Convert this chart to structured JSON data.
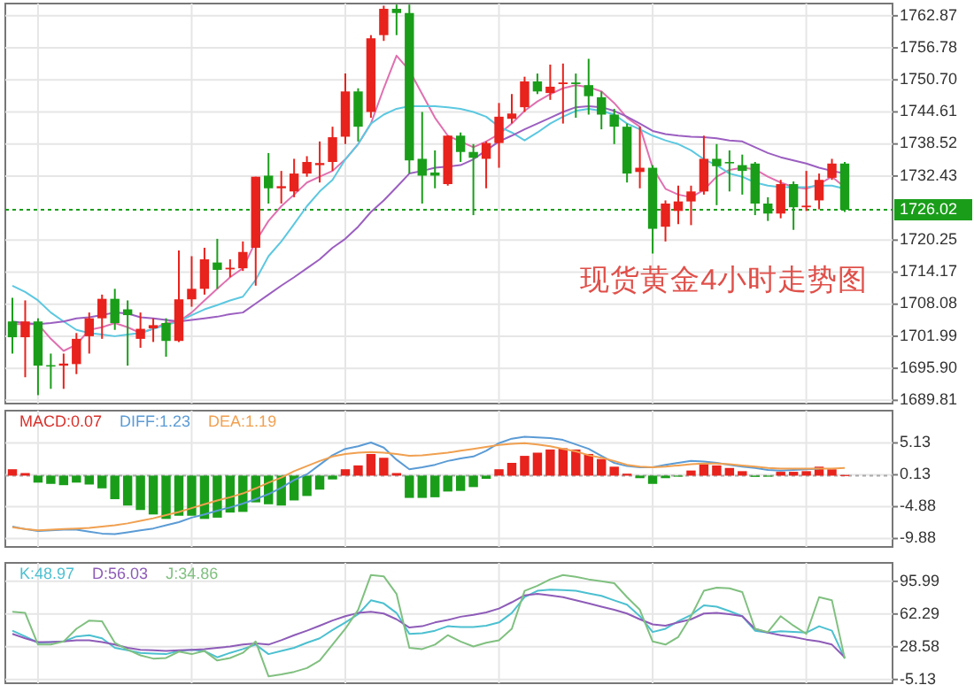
{
  "chart_data": [
    {
      "type": "candlestick",
      "title": "现货黄金4小时走势图",
      "categories": [
        null,
        null,
        null,
        null,
        null,
        null,
        null,
        null,
        null,
        null,
        null,
        null,
        null,
        null,
        null,
        null,
        null,
        null,
        null,
        null,
        null,
        null,
        null,
        null,
        null,
        null,
        null,
        null,
        null,
        null,
        null,
        null,
        null,
        null,
        null,
        null,
        null,
        null,
        null,
        null,
        null,
        null,
        null,
        null,
        null,
        null,
        null,
        null,
        null,
        null,
        null,
        null,
        null,
        null,
        null,
        null,
        null,
        null,
        null,
        null,
        null,
        null,
        null,
        null,
        null,
        null
      ],
      "ohlc": [
        [
          1704.8,
          1709.3,
          1698.7,
          1701.8
        ],
        [
          1701.8,
          1708.8,
          1694.2,
          1704.8
        ],
        [
          1704.8,
          1705.4,
          1690.8,
          1696.4
        ],
        [
          1696.5,
          1698.7,
          1692.0,
          1696.3
        ],
        [
          1696.4,
          1698.7,
          1692.0,
          1696.8
        ],
        [
          1696.7,
          1702.6,
          1694.8,
          1701.5
        ],
        [
          1702.0,
          1706.5,
          1698.7,
          1705.4
        ],
        [
          1705.4,
          1709.9,
          1701.5,
          1709.1
        ],
        [
          1709.1,
          1711.0,
          1703.2,
          1704.5
        ],
        [
          1707.1,
          1708.8,
          1696.4,
          1706.0
        ],
        [
          1701.5,
          1706.5,
          1699.8,
          1703.4
        ],
        [
          1703.5,
          1705.4,
          1700.9,
          1704.1
        ],
        [
          1704.5,
          1705.4,
          1698.1,
          1701.1
        ],
        [
          1701.1,
          1718.3,
          1700.9,
          1709.0
        ],
        [
          1709.0,
          1717.2,
          1707.6,
          1711.0
        ],
        [
          1711.0,
          1718.8,
          1709.9,
          1716.6
        ],
        [
          1716.0,
          1720.5,
          1711.0,
          1714.6
        ],
        [
          1714.7,
          1716.6,
          1713.2,
          1715.0
        ],
        [
          1714.9,
          1720.0,
          1714.4,
          1718.0
        ],
        [
          1718.8,
          1732.3,
          1711.6,
          1732.3
        ],
        [
          1732.5,
          1736.8,
          1727.2,
          1730.1
        ],
        [
          1730.1,
          1733.4,
          1727.2,
          1730.5
        ],
        [
          1729.5,
          1735.7,
          1728.4,
          1732.9
        ],
        [
          1732.9,
          1736.2,
          1732.3,
          1735.1
        ],
        [
          1734.5,
          1739.0,
          1731.2,
          1734.9
        ],
        [
          1735.1,
          1741.8,
          1733.4,
          1739.8
        ],
        [
          1739.9,
          1751.9,
          1738.5,
          1748.5
        ],
        [
          1748.5,
          1749.1,
          1739.0,
          1741.8
        ],
        [
          1744.6,
          1759.2,
          1743.5,
          1758.6
        ],
        [
          1759.2,
          1764.8,
          1758.1,
          1764.2
        ],
        [
          1764.2,
          1765.0,
          1759.2,
          1763.4
        ],
        [
          1763.4,
          1765.0,
          1732.9,
          1735.4
        ],
        [
          1735.7,
          1744.6,
          1727.2,
          1732.5
        ],
        [
          1733.1,
          1737.3,
          1730.1,
          1732.5
        ],
        [
          1730.9,
          1740.1,
          1730.6,
          1740.1
        ],
        [
          1740.1,
          1740.7,
          1735.1,
          1737.0
        ],
        [
          1737.0,
          1738.5,
          1725.0,
          1735.9
        ],
        [
          1735.7,
          1739.0,
          1730.1,
          1738.7
        ],
        [
          1738.7,
          1746.3,
          1734.0,
          1743.7
        ],
        [
          1743.3,
          1748.0,
          1742.4,
          1744.3
        ],
        [
          1745.5,
          1751.3,
          1744.6,
          1750.4
        ],
        [
          1750.4,
          1751.9,
          1748.0,
          1748.5
        ],
        [
          1748.2,
          1753.6,
          1746.9,
          1749.4
        ],
        [
          1749.9,
          1753.8,
          1742.4,
          1750.2
        ],
        [
          1750.2,
          1751.9,
          1743.5,
          1749.9
        ],
        [
          1749.7,
          1754.7,
          1744.1,
          1747.6
        ],
        [
          1747.4,
          1748.5,
          1741.3,
          1744.1
        ],
        [
          1744.1,
          1745.2,
          1738.5,
          1741.8
        ],
        [
          1741.8,
          1742.4,
          1731.2,
          1732.9
        ],
        [
          1733.2,
          1741.8,
          1730.1,
          1734.0
        ],
        [
          1734.0,
          1734.5,
          1717.7,
          1722.4
        ],
        [
          1722.8,
          1727.8,
          1720.0,
          1727.2
        ],
        [
          1725.8,
          1730.6,
          1723.3,
          1727.6
        ],
        [
          1727.6,
          1730.6,
          1723.1,
          1729.5
        ],
        [
          1729.5,
          1740.1,
          1728.9,
          1735.7
        ],
        [
          1735.7,
          1738.5,
          1726.9,
          1734.3
        ],
        [
          1735.1,
          1737.3,
          1729.5,
          1734.9
        ],
        [
          1734.5,
          1736.5,
          1728.9,
          1733.4
        ],
        [
          1734.8,
          1735.1,
          1725.0,
          1727.2
        ],
        [
          1727.2,
          1728.4,
          1723.9,
          1725.3
        ],
        [
          1725.3,
          1731.7,
          1724.4,
          1730.9
        ],
        [
          1730.9,
          1731.4,
          1722.2,
          1726.5
        ],
        [
          1726.5,
          1733.4,
          1725.8,
          1726.8
        ],
        [
          1727.8,
          1732.9,
          1726.1,
          1731.7
        ],
        [
          1732.1,
          1735.7,
          1731.7,
          1734.8
        ],
        [
          1734.8,
          1735.1,
          1725.6,
          1726.0
        ]
      ],
      "colors": [
        "#1a9e1a",
        "#e8221c",
        "#1a9e1a",
        "#1a9e1a",
        "#e8221c",
        "#e8221c",
        "#e8221c",
        "#e8221c",
        "#1a9e1a",
        "#1a9e1a",
        "#e8221c",
        "#e8221c",
        "#1a9e1a",
        "#e8221c",
        "#e8221c",
        "#e8221c",
        "#1a9e1a",
        "#e8221c",
        "#e8221c",
        "#e8221c",
        "#1a9e1a",
        "#e8221c",
        "#e8221c",
        "#e8221c",
        "#e8221c",
        "#e8221c",
        "#e8221c",
        "#1a9e1a",
        "#e8221c",
        "#e8221c",
        "#1a9e1a",
        "#1a9e1a",
        "#1a9e1a",
        "#1a9e1a",
        "#e8221c",
        "#1a9e1a",
        "#1a9e1a",
        "#e8221c",
        "#e8221c",
        "#e8221c",
        "#e8221c",
        "#1a9e1a",
        "#e8221c",
        "#e8221c",
        "#1a9e1a",
        "#1a9e1a",
        "#1a9e1a",
        "#1a9e1a",
        "#1a9e1a",
        "#e8221c",
        "#1a9e1a",
        "#e8221c",
        "#e8221c",
        "#e8221c",
        "#e8221c",
        "#1a9e1a",
        "#1a9e1a",
        "#1a9e1a",
        "#1a9e1a",
        "#1a9e1a",
        "#e8221c",
        "#1a9e1a",
        "#e8221c",
        "#e8221c",
        "#e8221c",
        "#1a9e1a"
      ],
      "series": [
        {
          "type": "line",
          "color": "#e070b0",
          "values": [
            1704.3,
            1704.3,
            1704.3,
            1701.5,
            1699.2,
            1700.4,
            1703.2,
            1703.7,
            1704.5,
            1703.7,
            1702.6,
            1703.4,
            1704.5,
            1704.8,
            1706.5,
            1708.8,
            1711.0,
            1713.2,
            1714.9,
            1720.0,
            1723.9,
            1726.7,
            1728.9,
            1731.2,
            1732.3,
            1733.4,
            1735.6,
            1738.5,
            1742.4,
            1749.1,
            1755.3,
            1752.5,
            1748.0,
            1743.5,
            1740.1,
            1739.0,
            1737.9,
            1739.0,
            1740.4,
            1742.4,
            1744.8,
            1746.6,
            1748.0,
            1749.1,
            1749.7,
            1749.3,
            1748.5,
            1746.3,
            1743.5,
            1741.8,
            1734.0,
            1730.0,
            1728.9,
            1728.4,
            1729.8,
            1732.3,
            1733.6,
            1734.0,
            1733.7,
            1732.3,
            1731.2,
            1730.3,
            1730.0,
            1730.9,
            1732.3,
            1730.3
          ]
        },
        {
          "type": "line",
          "color": "#5cc8e0",
          "values": [
            1711.6,
            1710.4,
            1708.8,
            1706.5,
            1704.8,
            1703.2,
            1702.6,
            1702.3,
            1702.0,
            1702.3,
            1702.6,
            1703.4,
            1704.1,
            1704.8,
            1706.0,
            1707.1,
            1707.9,
            1708.8,
            1709.5,
            1712.7,
            1717.2,
            1720.0,
            1723.3,
            1726.7,
            1729.5,
            1731.7,
            1735.6,
            1738.5,
            1742.4,
            1744.1,
            1745.2,
            1745.7,
            1745.7,
            1745.7,
            1745.5,
            1745.2,
            1744.6,
            1743.7,
            1741.8,
            1740.7,
            1739.2,
            1740.7,
            1742.4,
            1743.7,
            1744.8,
            1745.2,
            1744.8,
            1744.1,
            1742.4,
            1741.3,
            1740.1,
            1739.2,
            1738.5,
            1737.3,
            1735.6,
            1734.5,
            1732.9,
            1732.3,
            1731.2,
            1730.6,
            1730.3,
            1730.3,
            1730.3,
            1730.6,
            1730.6,
            1730.0
          ]
        },
        {
          "type": "line",
          "color": "#9b5fc0",
          "values": [
            1704.8,
            1704.5,
            1704.3,
            1704.5,
            1704.8,
            1705.4,
            1705.6,
            1706.0,
            1706.5,
            1706.3,
            1705.6,
            1705.4,
            1705.1,
            1704.8,
            1705.1,
            1705.4,
            1705.7,
            1706.2,
            1706.5,
            1708.2,
            1709.9,
            1711.6,
            1713.2,
            1714.9,
            1716.6,
            1718.8,
            1720.5,
            1722.8,
            1725.6,
            1727.8,
            1730.3,
            1732.9,
            1733.4,
            1734.0,
            1734.2,
            1734.5,
            1735.6,
            1737.3,
            1739.0,
            1740.1,
            1741.3,
            1742.4,
            1743.5,
            1744.6,
            1745.5,
            1745.7,
            1745.5,
            1744.8,
            1743.7,
            1742.4,
            1741.0,
            1740.4,
            1740.1,
            1739.9,
            1739.8,
            1739.6,
            1739.2,
            1739.0,
            1737.9,
            1736.8,
            1736.0,
            1735.4,
            1734.8,
            1734.0,
            1733.4,
            1732.9
          ]
        }
      ],
      "ylim": [
        1689.2,
        1765.2
      ],
      "yticks": [
        1762.87,
        1756.78,
        {
          "value": 1750.7,
          "label": "1750.70"
        },
        1744.61,
        1738.52,
        1732.43,
        1720.25,
        1714.17,
        1708.08,
        1701.99,
        {
          "value": 1695.9,
          "label": "1695.90"
        },
        1689.81
      ],
      "ref_lines": [
        {
          "axis": "y",
          "value": 1726.02,
          "label": "1726.02",
          "color": "#1a9e1a",
          "line_style": "dotted"
        }
      ],
      "grid": true
    },
    {
      "type": "bar",
      "categories": [
        null,
        null,
        null,
        null,
        null,
        null,
        null,
        null,
        null,
        null,
        null,
        null,
        null,
        null,
        null,
        null,
        null,
        null,
        null,
        null,
        null,
        null,
        null,
        null,
        null,
        null,
        null,
        null,
        null,
        null,
        null,
        null,
        null,
        null,
        null,
        null,
        null,
        null,
        null,
        null,
        null,
        null,
        null,
        null,
        null,
        null,
        null,
        null,
        null,
        null,
        null,
        null,
        null,
        null,
        null,
        null,
        null,
        null,
        null,
        null,
        null,
        null,
        null,
        null,
        null,
        null
      ],
      "series": [
        {
          "name": "MACD:0.07",
          "color": "#d9302a",
          "colors": [
            "#e8221c",
            "#e8221c",
            "#1a9e1a",
            "#1a9e1a",
            "#1a9e1a",
            "#1a9e1a",
            "#1a9e1a",
            "#1a9e1a",
            "#1a9e1a",
            "#1a9e1a",
            "#1a9e1a",
            "#1a9e1a",
            "#1a9e1a",
            "#1a9e1a",
            "#1a9e1a",
            "#1a9e1a",
            "#1a9e1a",
            "#1a9e1a",
            "#1a9e1a",
            "#1a9e1a",
            "#1a9e1a",
            "#1a9e1a",
            "#1a9e1a",
            "#1a9e1a",
            "#1a9e1a",
            "#1a9e1a",
            "#e8221c",
            "#e8221c",
            "#e8221c",
            "#e8221c",
            "#e8221c",
            "#1a9e1a",
            "#1a9e1a",
            "#1a9e1a",
            "#1a9e1a",
            "#1a9e1a",
            "#1a9e1a",
            "#1a9e1a",
            "#e8221c",
            "#e8221c",
            "#e8221c",
            "#e8221c",
            "#e8221c",
            "#e8221c",
            "#e8221c",
            "#e8221c",
            "#e8221c",
            "#e8221c",
            "#e8221c",
            "#1a9e1a",
            "#1a9e1a",
            "#1a9e1a",
            "#1a9e1a",
            "#e8221c",
            "#e8221c",
            "#e8221c",
            "#e8221c",
            "#e8221c",
            "#1a9e1a",
            "#1a9e1a",
            "#e8221c",
            "#e8221c",
            "#e8221c",
            "#e8221c",
            "#e8221c",
            "#e8221c"
          ],
          "values": [
            1.0,
            0.4,
            -1.1,
            -1.3,
            -1.5,
            -1.1,
            -1.4,
            -2.0,
            -3.7,
            -4.7,
            -5.4,
            -6.1,
            -6.8,
            -6.3,
            -6.3,
            -6.8,
            -6.6,
            -5.8,
            -5.7,
            -4.2,
            -4.5,
            -4.7,
            -3.9,
            -3.2,
            -2.2,
            -0.6,
            1.0,
            1.6,
            3.4,
            2.8,
            0.4,
            -3.5,
            -3.5,
            -3.4,
            -2.5,
            -2.4,
            -1.8,
            -0.5,
            1.0,
            2.0,
            3.1,
            3.6,
            4.1,
            4.3,
            4.1,
            3.4,
            2.6,
            1.4,
            0.3,
            -0.4,
            -1.3,
            -0.4,
            -0.1,
            0.8,
            1.8,
            1.6,
            1.2,
            0.7,
            -0.2,
            -0.1,
            0.6,
            0.6,
            0.7,
            1.4,
            1.0,
            0.1
          ]
        },
        {
          "type": "line",
          "name": "DIFF:1.23",
          "color": "#5b9bd5",
          "values": [
            -8.0,
            -8.4,
            -8.7,
            -8.6,
            -8.5,
            -8.5,
            -8.8,
            -9.1,
            -9.2,
            -8.9,
            -8.6,
            -8.3,
            -7.8,
            -7.3,
            -6.6,
            -6.1,
            -5.5,
            -5.0,
            -4.4,
            -3.7,
            -2.9,
            -1.9,
            -0.7,
            0.2,
            1.7,
            3.2,
            4.2,
            4.6,
            5.2,
            4.4,
            2.5,
            1.0,
            1.3,
            1.7,
            2.3,
            2.7,
            3.0,
            3.9,
            5.1,
            5.8,
            6.1,
            6.0,
            5.9,
            5.6,
            4.9,
            4.2,
            3.1,
            2.0,
            1.5,
            1.3,
            1.3,
            1.7,
            2.0,
            2.3,
            2.2,
            2.0,
            1.7,
            1.4,
            1.2,
            0.9,
            0.8,
            0.9,
            1.0,
            1.1,
            null,
            null
          ]
        },
        {
          "type": "line",
          "name": "DEA:1.19",
          "color": "#f0a050",
          "values": [
            -8.1,
            -8.4,
            -8.6,
            -8.5,
            -8.4,
            -8.3,
            -8.2,
            -8.0,
            -7.8,
            -7.5,
            -7.1,
            -6.7,
            -6.2,
            -5.7,
            -5.1,
            -4.5,
            -3.9,
            -3.4,
            -2.8,
            -2.0,
            -1.1,
            -0.3,
            0.7,
            1.5,
            2.3,
            3.0,
            3.4,
            3.6,
            3.7,
            3.6,
            3.4,
            3.1,
            3.2,
            3.4,
            3.6,
            3.9,
            4.2,
            4.5,
            4.8,
            5.0,
            5.1,
            4.9,
            4.6,
            4.2,
            3.8,
            3.2,
            2.8,
            2.3,
            1.7,
            1.4,
            1.3,
            1.4,
            1.6,
            1.8,
            1.9,
            1.9,
            1.8,
            1.6,
            1.4,
            1.2,
            1.1,
            1.1,
            1.1,
            1.1,
            1.1,
            1.2
          ]
        }
      ],
      "ylim": [
        -11.2,
        10.2
      ],
      "yticks": [
        5.13,
        0.13,
        -4.88,
        -9.88
      ],
      "ref_lines": [
        {
          "axis": "y",
          "value": 0,
          "color": "#aaaaaa",
          "line_style": "dotted"
        }
      ],
      "grid": true,
      "legend": "top left"
    },
    {
      "type": "line",
      "categories": [
        null,
        null,
        null,
        null,
        null,
        null,
        null,
        null,
        null,
        null,
        null,
        null,
        null,
        null,
        null,
        null,
        null,
        null,
        null,
        null,
        null,
        null,
        null,
        null,
        null,
        null,
        null,
        null,
        null,
        null,
        null,
        null,
        null,
        null,
        null,
        null,
        null,
        null,
        null,
        null,
        null,
        null,
        null,
        null,
        null,
        null,
        null,
        null,
        null,
        null,
        null,
        null,
        null,
        null,
        null,
        null,
        null,
        null,
        null,
        null,
        null,
        null,
        null,
        null,
        null,
        null
      ],
      "series": [
        {
          "name": "K:48.97",
          "color": "#4cc0d0",
          "values": [
            45.1,
            39.2,
            32.7,
            33.4,
            34.0,
            39.2,
            40.5,
            37.3,
            27.5,
            24.9,
            22.3,
            21.6,
            21.0,
            24.2,
            25.5,
            24.2,
            17.7,
            22.3,
            26.2,
            30.8,
            21.0,
            24.2,
            27.5,
            32.7,
            37.3,
            45.8,
            53.6,
            62.1,
            76.4,
            73.2,
            63.4,
            41.8,
            42.5,
            45.1,
            49.7,
            49.0,
            49.0,
            50.3,
            53.6,
            63.4,
            79.7,
            86.2,
            87.5,
            86.9,
            86.2,
            83.6,
            81.0,
            76.4,
            71.9,
            60.1,
            43.8,
            47.1,
            54.9,
            61.4,
            71.2,
            69.9,
            65.3,
            60.1,
            45.1,
            43.1,
            44.5,
            43.8,
            43.1,
            49.7,
            45.1,
            16.4
          ]
        },
        {
          "name": "D:56.03",
          "color": "#8e5cb8",
          "values": [
            41.8,
            37.3,
            33.4,
            33.4,
            34.0,
            35.3,
            35.3,
            33.4,
            30.8,
            27.5,
            25.5,
            24.9,
            24.2,
            24.9,
            25.5,
            26.2,
            27.5,
            28.8,
            30.8,
            32.1,
            30.8,
            35.3,
            40.5,
            45.1,
            50.3,
            55.6,
            60.1,
            63.4,
            64.7,
            62.8,
            56.9,
            48.4,
            49.7,
            53.6,
            56.2,
            59.5,
            61.4,
            64.0,
            67.9,
            74.4,
            81.6,
            83.0,
            81.6,
            79.7,
            76.4,
            73.2,
            69.9,
            66.6,
            62.8,
            56.9,
            51.6,
            50.3,
            53.6,
            56.9,
            62.8,
            63.4,
            62.1,
            60.1,
            47.1,
            43.1,
            40.5,
            38.6,
            36.0,
            34.0,
            30.8,
            17.7
          ]
        },
        {
          "name": "J:34.86",
          "color": "#80c080",
          "values": [
            64.7,
            63.4,
            30.8,
            30.8,
            34.0,
            47.1,
            55.6,
            54.9,
            32.7,
            25.5,
            19.7,
            16.4,
            17.0,
            23.6,
            21.0,
            24.2,
            14.4,
            17.0,
            22.3,
            34.0,
            -1.9,
            0.1,
            2.7,
            6.6,
            14.4,
            30.8,
            47.1,
            66.6,
            102.5,
            101.2,
            83.0,
            27.5,
            26.2,
            30.8,
            40.5,
            34.0,
            28.8,
            32.7,
            35.3,
            47.1,
            86.2,
            91.4,
            98.0,
            102.5,
            100.6,
            98.0,
            96.0,
            94.0,
            79.7,
            66.6,
            34.0,
            30.8,
            38.6,
            60.1,
            86.2,
            89.5,
            88.8,
            84.9,
            47.1,
            43.8,
            60.1,
            50.3,
            41.8,
            79.7,
            76.4,
            16.4
          ]
        }
      ],
      "ylim": [
        -9,
        115
      ],
      "yticks": [
        95.99,
        62.29,
        28.58,
        -5.13
      ],
      "grid": true,
      "legend": "top left"
    }
  ]
}
